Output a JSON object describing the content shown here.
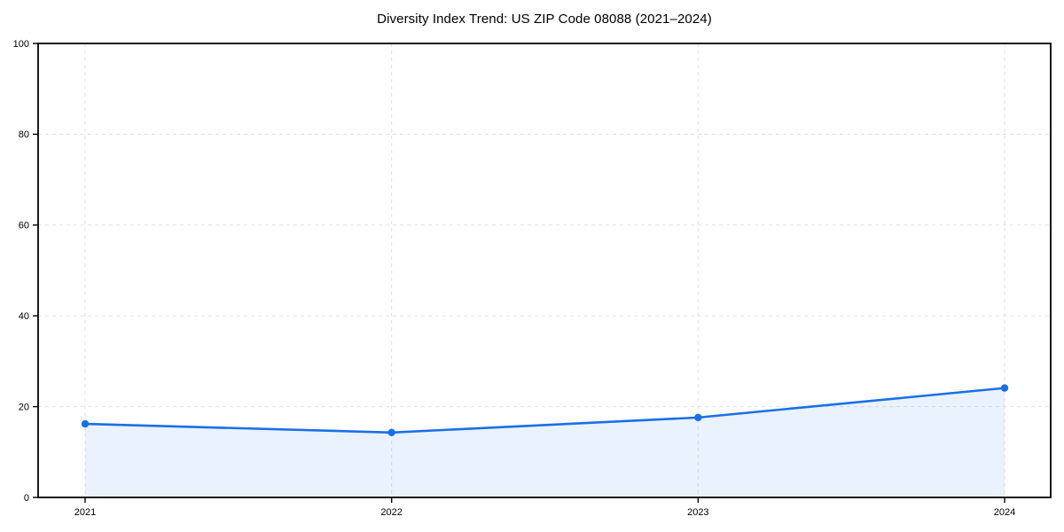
{
  "chart_data": {
    "type": "area",
    "title": "Diversity Index Trend: US ZIP Code 08088 (2021–2024)",
    "categories": [
      "2021",
      "2022",
      "2023",
      "2024"
    ],
    "x": [
      2021,
      2022,
      2023,
      2024
    ],
    "series": [
      {
        "name": "Diversity Index",
        "values": [
          16.2,
          14.3,
          17.6,
          24.1
        ]
      }
    ],
    "xlabel": "",
    "ylabel": "",
    "ylim": [
      0,
      100
    ],
    "yticks": [
      0,
      20,
      40,
      60,
      80,
      100
    ],
    "yticklabels": [
      "0",
      "20",
      "40",
      "60",
      "80",
      "100"
    ],
    "grid": "dashed-both-axes",
    "legend_position": "none",
    "colors": {
      "line": "#1a6fe8",
      "marker": "#1a6fe8",
      "area_fill": "rgba(26, 111, 232, 0.09)",
      "gridline": "#e2e2e2",
      "spine": "#000000",
      "tick_label": "#000000",
      "background": "#ffffff"
    }
  }
}
